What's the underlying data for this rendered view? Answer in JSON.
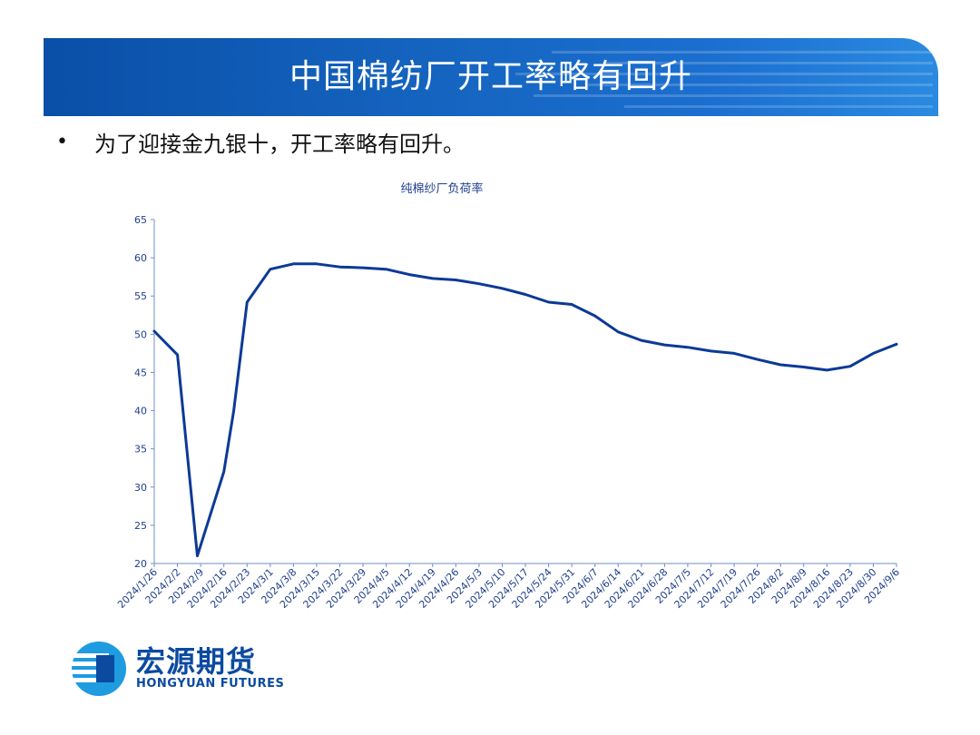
{
  "header": {
    "title": "中国棉纺厂开工率略有回升"
  },
  "bullets": [
    {
      "text": "为了迎接金九银十，开工率略有回升。"
    }
  ],
  "logo": {
    "cn": "宏源期货",
    "en": "HONGYUAN FUTURES"
  },
  "colors": {
    "banner": "#1565c0",
    "series": "#0b3a96",
    "text_axis": "#1f3e8c"
  },
  "chart_data": {
    "type": "line",
    "title": "纯棉纱厂负荷率",
    "xlabel": "",
    "ylabel": "",
    "ylim": [
      20,
      65
    ],
    "yticks": [
      20,
      25,
      30,
      35,
      40,
      45,
      50,
      55,
      60,
      65
    ],
    "grid": false,
    "legend": "none",
    "x": [
      "2024/1/26",
      "2024/2/2",
      "2024/2/9",
      "2024/2/16",
      "2024/2/23",
      "2024/3/1",
      "2024/3/8",
      "2024/3/15",
      "2024/3/22",
      "2024/3/29",
      "2024/4/5",
      "2024/4/12",
      "2024/4/19",
      "2024/4/26",
      "2024/5/3",
      "2024/5/10",
      "2024/5/17",
      "2024/5/24",
      "2024/5/31",
      "2024/6/7",
      "2024/6/14",
      "2024/6/21",
      "2024/6/28",
      "2024/7/5",
      "2024/7/12",
      "2024/7/19",
      "2024/7/26",
      "2024/8/2",
      "2024/8/9",
      "2024/8/16",
      "2024/8/23",
      "2024/8/30",
      "2024/9/6"
    ],
    "series": [
      {
        "values": [
          {
            "x": "2024/1/26",
            "y": 50.4
          },
          {
            "x": "2024/2/2",
            "y": 47.3
          },
          {
            "x": "2024/2/8",
            "y": 21.0
          },
          {
            "x": "2024/2/16",
            "y": 32.0
          },
          {
            "x": "2024/2/19",
            "y": 40.0
          },
          {
            "x": "2024/2/23",
            "y": 54.2
          },
          {
            "x": "2024/3/1",
            "y": 58.5
          },
          {
            "x": "2024/3/8",
            "y": 59.2
          },
          {
            "x": "2024/3/15",
            "y": 59.2
          },
          {
            "x": "2024/3/22",
            "y": 58.8
          },
          {
            "x": "2024/3/29",
            "y": 58.7
          },
          {
            "x": "2024/4/5",
            "y": 58.5
          },
          {
            "x": "2024/4/12",
            "y": 57.8
          },
          {
            "x": "2024/4/19",
            "y": 57.3
          },
          {
            "x": "2024/4/26",
            "y": 57.1
          },
          {
            "x": "2024/5/3",
            "y": 56.6
          },
          {
            "x": "2024/5/10",
            "y": 56.0
          },
          {
            "x": "2024/5/17",
            "y": 55.2
          },
          {
            "x": "2024/5/24",
            "y": 54.2
          },
          {
            "x": "2024/5/31",
            "y": 53.9
          },
          {
            "x": "2024/6/7",
            "y": 52.4
          },
          {
            "x": "2024/6/14",
            "y": 50.3
          },
          {
            "x": "2024/6/21",
            "y": 49.2
          },
          {
            "x": "2024/6/28",
            "y": 48.6
          },
          {
            "x": "2024/7/5",
            "y": 48.3
          },
          {
            "x": "2024/7/12",
            "y": 47.8
          },
          {
            "x": "2024/7/19",
            "y": 47.5
          },
          {
            "x": "2024/7/26",
            "y": 46.7
          },
          {
            "x": "2024/8/2",
            "y": 46.0
          },
          {
            "x": "2024/8/9",
            "y": 45.7
          },
          {
            "x": "2024/8/16",
            "y": 45.3
          },
          {
            "x": "2024/8/23",
            "y": 45.8
          },
          {
            "x": "2024/8/30",
            "y": 47.5
          },
          {
            "x": "2024/9/6",
            "y": 48.7
          }
        ]
      }
    ]
  }
}
